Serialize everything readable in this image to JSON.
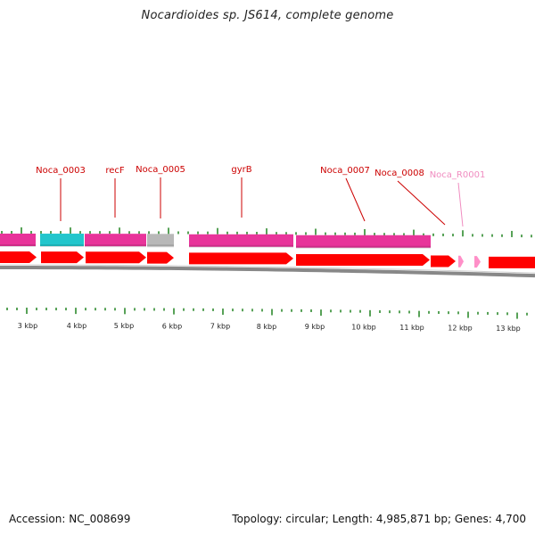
{
  "title": "Nocardioides sp. JS614, complete genome",
  "footer": {
    "accession": "Accession: NC_008699",
    "summary": "Topology: circular; Length: 4,985,871 bp; Genes: 4,700"
  },
  "colors": {
    "tick": "#2e8b2e",
    "cds": "#ff0000",
    "rna": "#ff8fc8",
    "track_magenta": "#e8349a",
    "track_cyan": "#22c6cc",
    "track_gray": "#b8b8b8",
    "backbone": "#888888",
    "label_red": "#cc0000",
    "label_pink": "#f08cc0"
  },
  "scale_labels": [
    "3 kbp",
    "4 kbp",
    "5 kbp",
    "6 kbp",
    "7 kbp",
    "8 kbp",
    "9 kbp",
    "10 kbp",
    "11 kbp",
    "12 kbp",
    "13 kbp"
  ],
  "gene_labels": [
    {
      "text": "Noca_0003",
      "kind": "cds"
    },
    {
      "text": "recF",
      "kind": "cds"
    },
    {
      "text": "Noca_0005",
      "kind": "cds"
    },
    {
      "text": "gyrB",
      "kind": "cds"
    },
    {
      "text": "Noca_0007",
      "kind": "cds"
    },
    {
      "text": "Noca_0008",
      "kind": "cds"
    },
    {
      "text": "Noca_R0001",
      "kind": "rna"
    }
  ]
}
